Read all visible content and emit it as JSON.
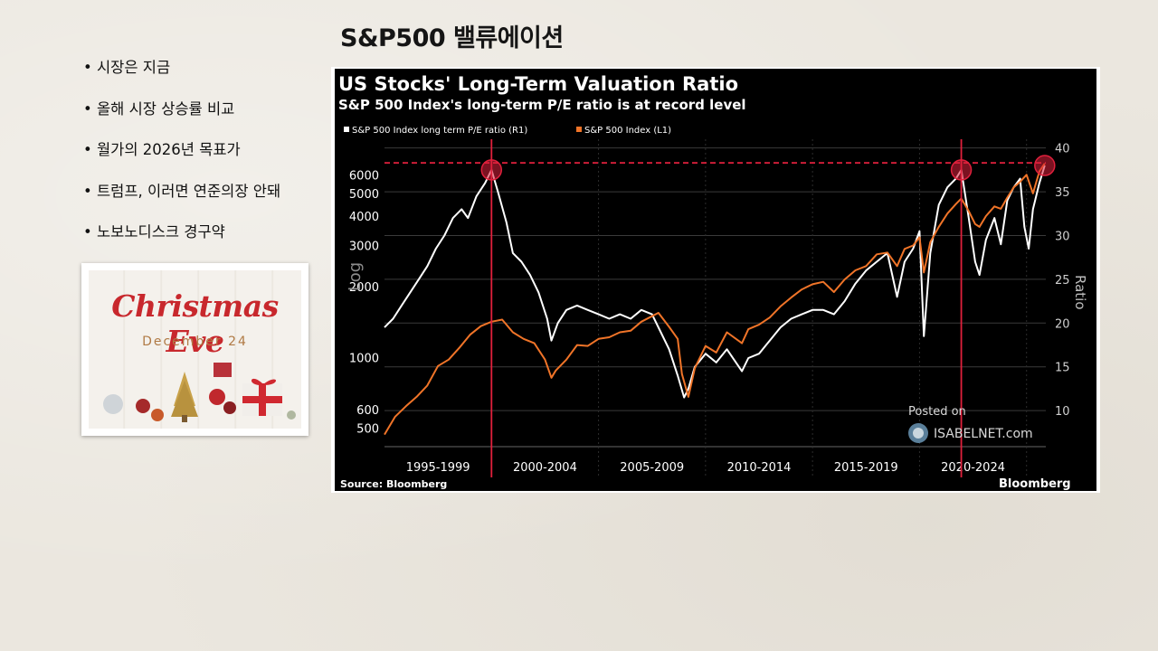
{
  "slide": {
    "title": "S&P500 밸류에이션",
    "bullets": [
      "시장은 지금",
      "올해 시장 상승률 비교",
      "월가의 2026년 목표가",
      "트럼프, 이러면 연준의장 안돼",
      "노보노디스크 경구약"
    ],
    "image_card": {
      "title": "Christmas Eve",
      "subtitle": "December 24"
    }
  },
  "chart_data": {
    "type": "line",
    "title": "US Stocks' Long-Term Valuation Ratio",
    "subtitle": "S&P 500 Index's long-term P/E ratio is at record level",
    "legend": [
      {
        "label": "S&P 500 Index long term P/E ratio (R1)",
        "color": "#ffffff"
      },
      {
        "label": "S&P 500 Index (L1)",
        "color": "#f07428"
      }
    ],
    "legend_placement": "top-left",
    "x_range": [
      1995.0,
      2025.9
    ],
    "x_tick_labels": [
      "1995-1999",
      "2000-2004",
      "2005-2009",
      "2010-2014",
      "2015-2019",
      "2020-2024"
    ],
    "x_dividers": [
      2000,
      2005,
      2010,
      2015,
      2020,
      2025
    ],
    "left_axis": {
      "label": "Log",
      "scale": "log",
      "range": [
        440,
        8500
      ],
      "ticks": [
        500,
        600,
        1000,
        2000,
        3000,
        4000,
        5000,
        6000
      ]
    },
    "right_axis": {
      "label": "Ratio",
      "range": [
        6.5,
        41
      ],
      "ticks": [
        10,
        15,
        20,
        25,
        30,
        35,
        40
      ]
    },
    "series": [
      {
        "name": "S&P 500 Index long term P/E ratio (R1)",
        "axis": "right",
        "color": "#ffffff",
        "x": [
          1995.0,
          1995.4,
          1995.8,
          1996.2,
          1996.6,
          1997.0,
          1997.4,
          1997.8,
          1998.2,
          1998.6,
          1998.9,
          1999.3,
          1999.7,
          2000.0,
          2000.3,
          2000.7,
          2001.0,
          2001.4,
          2001.8,
          2002.2,
          2002.6,
          2002.8,
          2003.1,
          2003.5,
          2004.0,
          2004.5,
          2005.0,
          2005.5,
          2006.0,
          2006.5,
          2007.0,
          2007.5,
          2007.9,
          2008.3,
          2008.7,
          2009.0,
          2009.2,
          2009.5,
          2010.0,
          2010.5,
          2011.0,
          2011.7,
          2012.0,
          2012.5,
          2013.0,
          2013.5,
          2014.0,
          2014.5,
          2015.0,
          2015.5,
          2016.0,
          2016.5,
          2017.0,
          2017.5,
          2018.0,
          2018.5,
          2018.95,
          2019.3,
          2019.7,
          2020.0,
          2020.2,
          2020.5,
          2020.9,
          2021.3,
          2021.7,
          2021.95,
          2022.3,
          2022.6,
          2022.8,
          2023.1,
          2023.5,
          2023.8,
          2024.1,
          2024.4,
          2024.7,
          2024.9,
          2025.1,
          2025.3,
          2025.6,
          2025.85
        ],
        "values": [
          19.5,
          20.5,
          22,
          23.5,
          25,
          26.5,
          28.5,
          30,
          32,
          33,
          32,
          34.5,
          36,
          37.5,
          35,
          31.5,
          28,
          27,
          25.5,
          23.5,
          20.5,
          18,
          20,
          21.5,
          22,
          21.5,
          21,
          20.5,
          21,
          20.5,
          21.5,
          21,
          19,
          17,
          14,
          11.5,
          12.5,
          15,
          16.5,
          15.5,
          17,
          14.5,
          16,
          16.5,
          18,
          19.5,
          20.5,
          21,
          21.5,
          21.5,
          21,
          22.5,
          24.5,
          26,
          27,
          28,
          23,
          27,
          28.5,
          30.5,
          18.5,
          28,
          33.5,
          35.5,
          36.5,
          37.5,
          32,
          27,
          25.5,
          29.5,
          32,
          29,
          34,
          35.5,
          36.5,
          31,
          28.5,
          33,
          36,
          38
        ]
      },
      {
        "name": "S&P 500 Index (L1)",
        "axis": "left",
        "color": "#f07428",
        "x": [
          1995.0,
          1995.5,
          1996.0,
          1996.5,
          1997.0,
          1997.5,
          1998.0,
          1998.5,
          1999.0,
          1999.5,
          2000.0,
          2000.5,
          2001.0,
          2001.5,
          2002.0,
          2002.5,
          2002.8,
          2003.0,
          2003.5,
          2004.0,
          2004.5,
          2005.0,
          2005.5,
          2006.0,
          2006.5,
          2007.0,
          2007.5,
          2007.8,
          2008.3,
          2008.7,
          2008.9,
          2009.2,
          2009.5,
          2010.0,
          2010.5,
          2011.0,
          2011.7,
          2012.0,
          2012.5,
          2013.0,
          2013.5,
          2014.0,
          2014.5,
          2015.0,
          2015.5,
          2016.0,
          2016.5,
          2017.0,
          2017.5,
          2018.0,
          2018.5,
          2018.95,
          2019.3,
          2019.7,
          2020.0,
          2020.2,
          2020.5,
          2020.9,
          2021.3,
          2021.7,
          2021.95,
          2022.3,
          2022.6,
          2022.8,
          2023.1,
          2023.5,
          2023.8,
          2024.1,
          2024.4,
          2024.7,
          2025.0,
          2025.3,
          2025.6,
          2025.85
        ],
        "values": [
          470,
          560,
          620,
          680,
          760,
          920,
          980,
          1100,
          1250,
          1360,
          1420,
          1450,
          1280,
          1200,
          1150,
          980,
          820,
          880,
          980,
          1130,
          1120,
          1200,
          1220,
          1280,
          1300,
          1420,
          1500,
          1550,
          1350,
          1200,
          850,
          680,
          900,
          1120,
          1050,
          1280,
          1150,
          1320,
          1380,
          1480,
          1650,
          1800,
          1950,
          2050,
          2100,
          1900,
          2150,
          2350,
          2450,
          2750,
          2800,
          2450,
          2900,
          3000,
          3250,
          2300,
          3100,
          3600,
          4100,
          4500,
          4750,
          4200,
          3700,
          3600,
          4000,
          4400,
          4300,
          4800,
          5300,
          5600,
          6000,
          5000,
          6200,
          6700
        ]
      }
    ],
    "reference_line_level": 38.3,
    "highlighted_peaks_x": [
      2000.0,
      2021.95,
      2025.85
    ],
    "annotations": [
      "Posted on",
      "ISABELNET.com"
    ],
    "source": "Source: Bloomberg",
    "brand": "Bloomberg"
  }
}
